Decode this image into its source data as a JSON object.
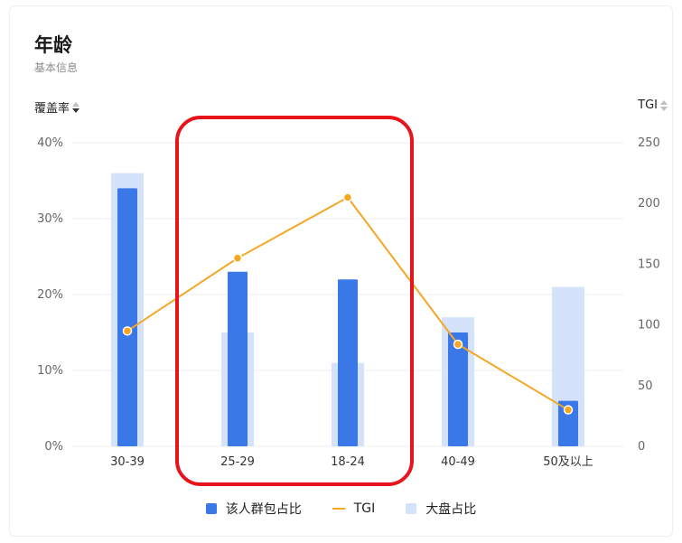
{
  "header": {
    "title": "年龄",
    "subtitle": "基本信息"
  },
  "axes": {
    "left_name": "覆盖率",
    "right_name": "TGI"
  },
  "legend": {
    "bars": "该人群包占比",
    "line": "TGI",
    "market": "大盘占比"
  },
  "colors": {
    "bars": "#3b78e7",
    "market": "#d4e2fb",
    "line": "#f5a623",
    "highlight": "#e8141b",
    "grid": "#ececec"
  },
  "icons": {
    "sort": "sort-caret-icon"
  },
  "chart_data": {
    "type": "bar",
    "categories": [
      "30-39",
      "25-29",
      "18-24",
      "40-49",
      "50及以上"
    ],
    "series": [
      {
        "name": "该人群包占比",
        "type": "bar",
        "axis": "left",
        "values": [
          34,
          23,
          22,
          15,
          6
        ]
      },
      {
        "name": "大盘占比",
        "type": "bar",
        "axis": "left",
        "values": [
          36,
          15,
          11,
          17,
          21
        ]
      },
      {
        "name": "TGI",
        "type": "line",
        "axis": "right",
        "values": [
          95,
          155,
          205,
          84,
          30
        ]
      }
    ],
    "ylim_left": [
      0,
      40
    ],
    "yticks_left": [
      "0%",
      "10%",
      "20%",
      "30%",
      "40%"
    ],
    "ylim_right": [
      0,
      250
    ],
    "yticks_right": [
      "0",
      "50",
      "100",
      "150",
      "200",
      "250"
    ],
    "grid": true,
    "legend_position": "bottom",
    "highlighted_categories": [
      "25-29",
      "18-24"
    ]
  }
}
